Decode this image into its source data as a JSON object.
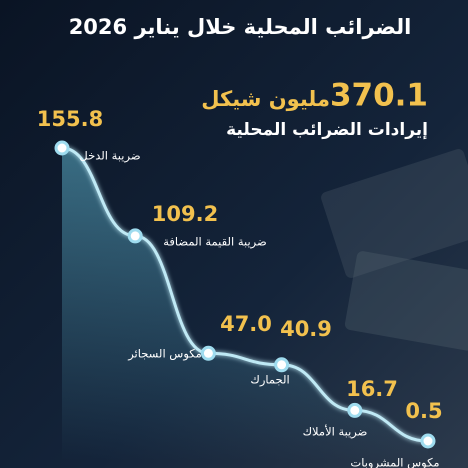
{
  "chart_data": {
    "type": "line",
    "title": "الضرائب المحلية خلال يناير 2026",
    "total": "370.1",
    "total_unit": "مليون شيكل",
    "subtitle": "إيرادات الضرائب المحلية",
    "categories": [
      "ضريبة الدخل",
      "ضريبة القيمة المضافة",
      "مكوس السجائر",
      "الجمارك",
      "ضريبة الأملاك",
      "مكوس المشروبات"
    ],
    "values": [
      155.8,
      109.2,
      47.0,
      40.9,
      16.7,
      0.5
    ],
    "value_labels": [
      "155.8",
      "109.2",
      "47.0",
      "40.9",
      "16.7",
      "0.5"
    ],
    "color": "#bfe9f5"
  }
}
